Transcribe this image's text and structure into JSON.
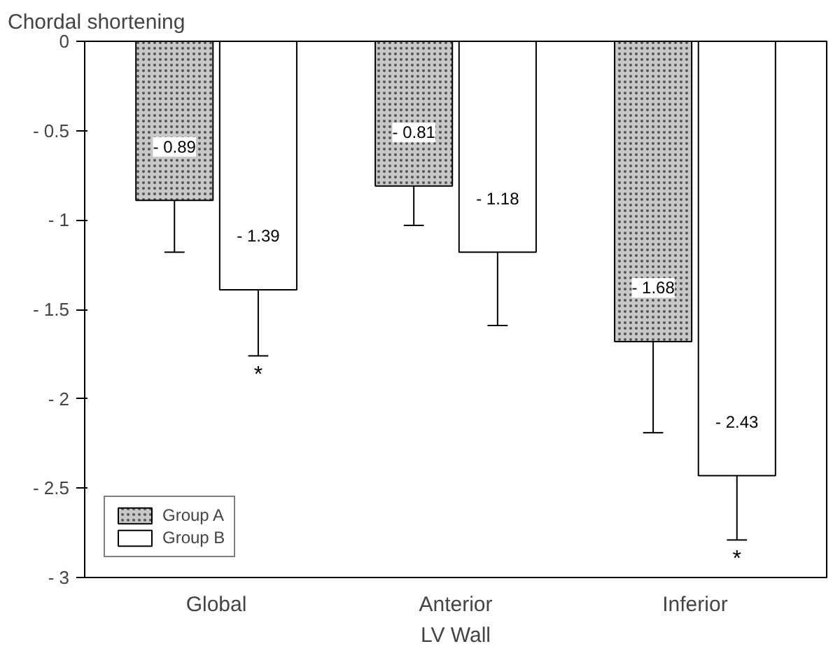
{
  "chart_data": {
    "type": "bar",
    "ylabel": "Chordal shortening",
    "xlabel": "LV Wall",
    "categories": [
      "Global",
      "Anterior",
      "Inferior"
    ],
    "series": [
      {
        "name": "Group A",
        "color": "#c8c8c8",
        "values": [
          -0.89,
          -0.81,
          -1.68
        ],
        "value_labels": [
          "- 0.89",
          "- 0.81",
          "- 1.68"
        ],
        "errors": [
          [
            -1.18,
            -0.89
          ],
          [
            -1.03,
            -0.81
          ],
          [
            -2.19,
            -1.68
          ]
        ]
      },
      {
        "name": "Group B",
        "color": "#ffffff",
        "values": [
          -1.39,
          -1.18,
          -2.43
        ],
        "value_labels": [
          "- 1.39",
          "- 1.18",
          "- 2.43"
        ],
        "errors": [
          [
            -1.76,
            -1.39
          ],
          [
            -1.59,
            -1.18
          ],
          [
            -2.79,
            -2.43
          ]
        ]
      }
    ],
    "annotations": [
      "*",
      "*"
    ],
    "ylim": [
      -3,
      0
    ],
    "yticks": [
      0,
      {
        "value": -0.5,
        "label": "- 0.5"
      },
      {
        "value": -1,
        "label": "- 1"
      },
      {
        "value": -1.5,
        "label": "- 1.5"
      },
      {
        "value": -2,
        "label": "- 2"
      },
      {
        "value": -2.5,
        "label": "- 2.5"
      },
      {
        "value": -3,
        "label": "- 3"
      }
    ],
    "grid": false,
    "legend": "bottom left"
  }
}
